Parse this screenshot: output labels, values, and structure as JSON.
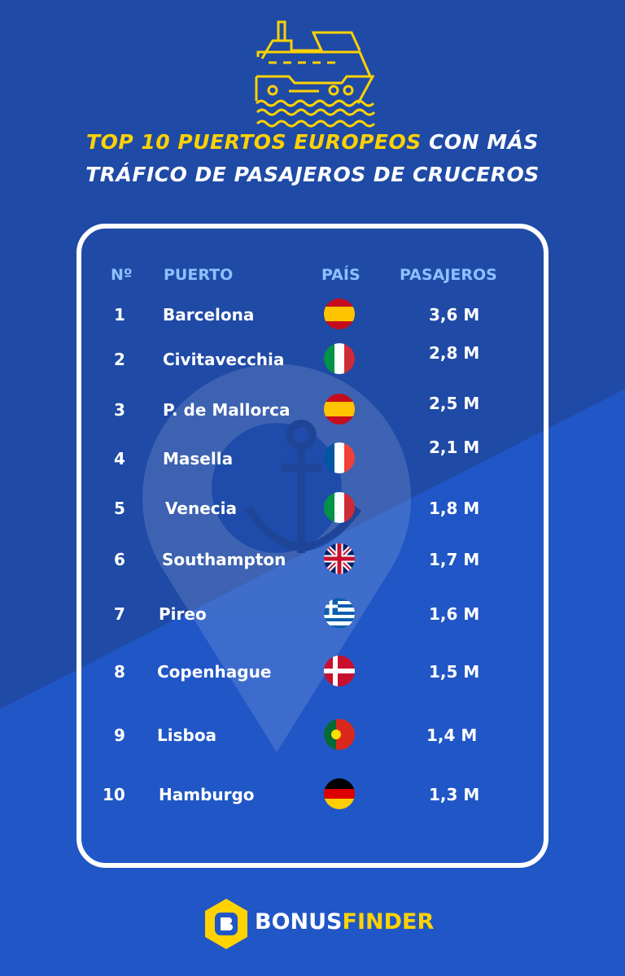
{
  "title": {
    "part1": "TOP 10  PUERTOS EUROPEOS",
    "part2": " CON MÁS",
    "line2": "TRÁFICO DE PASAJEROS DE CRUCEROS"
  },
  "headers": {
    "rank": "Nº",
    "port": "PUERTO",
    "country": "PAÍS",
    "passengers": "PASAJEROS"
  },
  "rows": [
    {
      "rank": "1",
      "port": "Barcelona",
      "flag": "spain",
      "passengers": "3,6 M"
    },
    {
      "rank": "2",
      "port": "Civitavecchia",
      "flag": "italy",
      "passengers": "2,8 M"
    },
    {
      "rank": "3",
      "port": "P. de Mallorca",
      "flag": "spain",
      "passengers": "2,5 M"
    },
    {
      "rank": "4",
      "port": "Masella",
      "flag": "france",
      "passengers": "2,1 M"
    },
    {
      "rank": "5",
      "port": "Venecia",
      "flag": "italy",
      "passengers": "1,8 M"
    },
    {
      "rank": "6",
      "port": "Southampton",
      "flag": "uk",
      "passengers": "1,7 M"
    },
    {
      "rank": "7",
      "port": "Pireo",
      "flag": "greece",
      "passengers": "1,6 M"
    },
    {
      "rank": "8",
      "port": "Copenhague",
      "flag": "denmark",
      "passengers": "1,5 M"
    },
    {
      "rank": "9",
      "port": "Lisboa",
      "flag": "portugal",
      "passengers": "1,4 M"
    },
    {
      "rank": "10",
      "port": "Hamburgo",
      "flag": "germany",
      "passengers": "1,3 M"
    }
  ],
  "brand": {
    "part1": "BONUS",
    "part2": "FINDER"
  },
  "chart_data": {
    "type": "table",
    "title": "TOP 10 PUERTOS EUROPEOS CON MÁS TRÁFICO DE PASAJEROS DE CRUCEROS",
    "columns": [
      "Nº",
      "PUERTO",
      "PAÍS",
      "PASAJEROS"
    ],
    "categories": [
      "Barcelona",
      "Civitavecchia",
      "P. de Mallorca",
      "Masella",
      "Venecia",
      "Southampton",
      "Pireo",
      "Copenhague",
      "Lisboa",
      "Hamburgo"
    ],
    "values": [
      3.6,
      2.8,
      2.5,
      2.1,
      1.8,
      1.7,
      1.6,
      1.5,
      1.4,
      1.3
    ],
    "unit": "M"
  }
}
